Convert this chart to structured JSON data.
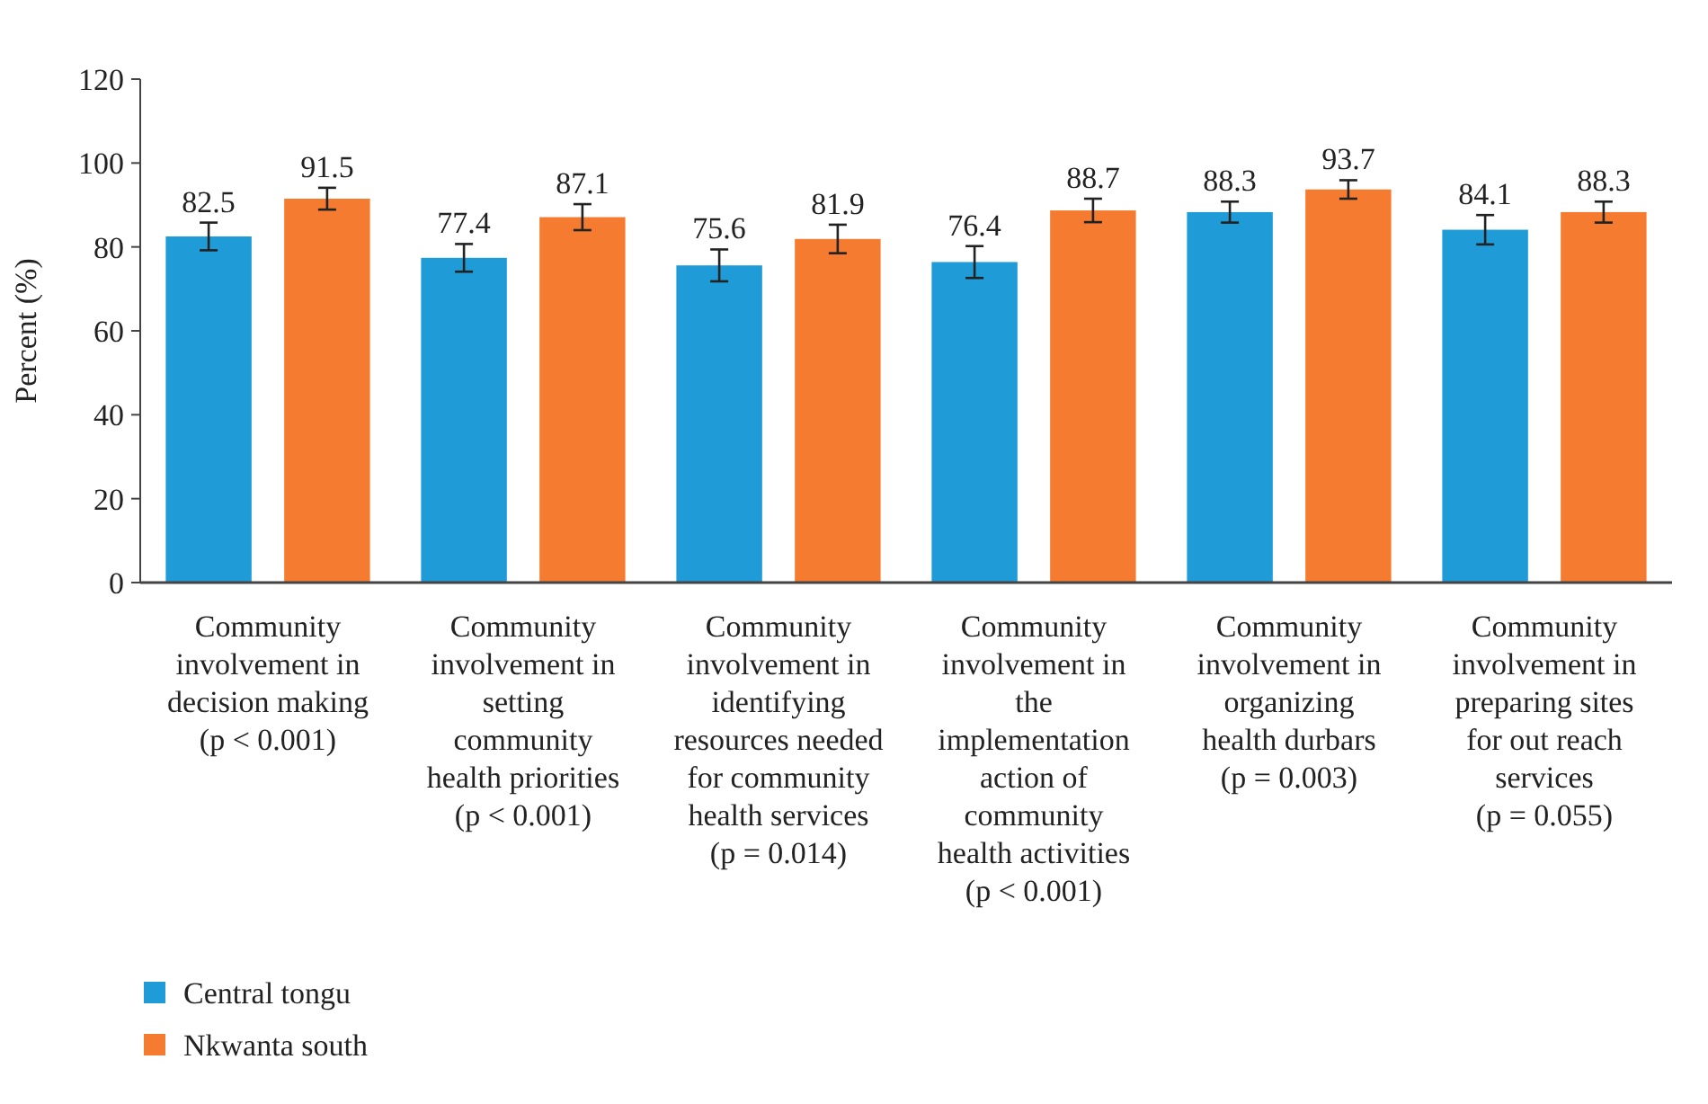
{
  "chart_data": {
    "type": "bar",
    "ylabel": "Percent (%)",
    "categories": [
      "Community\ninvolvement in\ndecision making\n(p < 0.001)",
      "Community\ninvolvement in\nsetting\ncommunity\nhealth priorities\n(p < 0.001)",
      "Community\ninvolvement in\nidentifying\nresources needed\nfor community\nhealth services\n(p = 0.014)",
      "Community\ninvolvement in\nthe\nimplementation\naction of\ncommunity\nhealth activities\n(p < 0.001)",
      "Community\ninvolvement in\norganizing\nhealth durbars\n(p = 0.003)",
      "Community\ninvolvement in\npreparing sites\nfor out reach\nservices\n(p = 0.055)"
    ],
    "series": [
      {
        "name": "Central tongu",
        "color": "#1f9cd7",
        "values": [
          82.5,
          77.4,
          75.6,
          76.4,
          88.3,
          84.1
        ],
        "errors": [
          3.3,
          3.3,
          3.8,
          3.8,
          2.5,
          3.5
        ]
      },
      {
        "name": "Nkwanta south",
        "color": "#f47b30",
        "values": [
          91.5,
          87.1,
          81.9,
          88.7,
          93.7,
          88.3
        ],
        "errors": [
          2.6,
          3.1,
          3.4,
          2.8,
          2.2,
          2.5
        ]
      }
    ],
    "ylim": [
      0,
      120
    ],
    "yticks": [
      0,
      20,
      40,
      60,
      80,
      100,
      120
    ],
    "data_labels": true,
    "legend": "bottom left",
    "grid": false
  }
}
